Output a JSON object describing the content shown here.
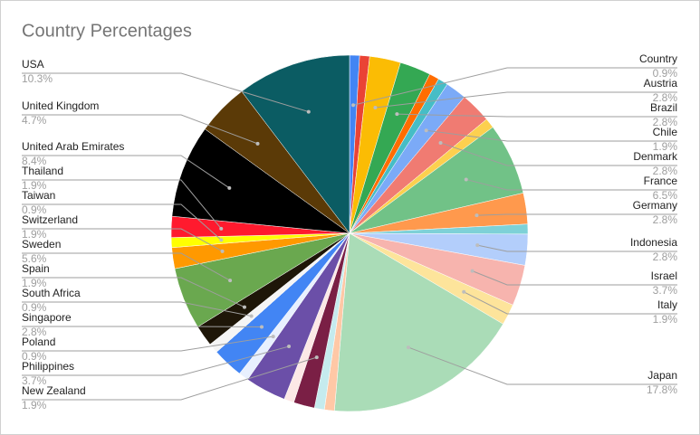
{
  "chart_data": {
    "type": "pie",
    "title": "Country Percentages",
    "categories": [
      "Country",
      null,
      "Austria",
      "Brazil",
      null,
      null,
      "Chile",
      "Denmark",
      null,
      "France",
      "Germany",
      null,
      "Indonesia",
      "Israel",
      "Italy",
      "Japan",
      null,
      null,
      "New Zealand",
      null,
      "Philippines",
      "Poland",
      "Singapore",
      "South Africa",
      "Spain",
      "Sweden",
      "Switzerland",
      "Taiwan",
      "Thailand",
      "United Arab Emirates",
      "United Kingdom",
      "USA"
    ],
    "values": [
      0.9,
      0.9,
      2.8,
      2.8,
      0.9,
      0.9,
      1.9,
      2.8,
      0.9,
      6.5,
      2.8,
      0.9,
      2.8,
      3.7,
      1.9,
      17.8,
      0.9,
      0.9,
      1.9,
      0.9,
      3.7,
      0.9,
      2.8,
      0.9,
      1.9,
      5.6,
      1.9,
      0.9,
      1.9,
      8.4,
      4.7,
      10.3
    ],
    "value_labels": [
      "0.9%",
      null,
      "2.8%",
      "2.8%",
      null,
      null,
      "1.9%",
      "2.8%",
      null,
      "6.5%",
      "2.8%",
      null,
      "2.8%",
      "3.7%",
      "1.9%",
      "17.8%",
      null,
      null,
      "1.9%",
      null,
      "3.7%",
      "0.9%",
      "2.8%",
      "0.9%",
      "1.9%",
      "5.6%",
      "1.9%",
      "0.9%",
      "1.9%",
      "8.4%",
      "4.7%",
      "10.3%"
    ],
    "colors": [
      "#4285f4",
      "#ea4335",
      "#fbbc04",
      "#34a853",
      "#ff6d01",
      "#46bdc6",
      "#7baaf7",
      "#f07b72",
      "#fcd04f",
      "#71c287",
      "#ff994d",
      "#7ed1d7",
      "#b3cefb",
      "#f7b4ae",
      "#fde49b",
      "#aadcb7",
      "#ffc8a6",
      "#c5ebee",
      "#7a1f45",
      "#fce8e6",
      "#6b4fa8",
      "#e8f0fe",
      "#4285f4",
      "#f5f5f5",
      "#1e1608",
      "#6aa84f",
      "#ff9900",
      "#ffff00",
      "#ff1a2e",
      "#000000",
      "#5b3a07",
      "#0b5c63"
    ]
  }
}
